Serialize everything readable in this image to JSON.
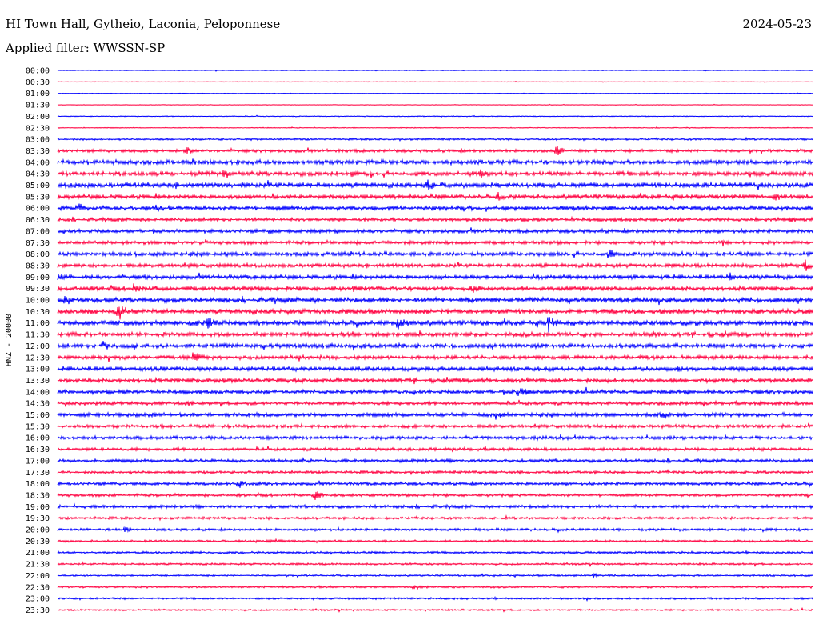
{
  "header": {
    "station": "HI Town Hall, Gytheio, Laconia, Peloponnese",
    "date": "2024-05-23",
    "filter": "Applied filter: WWSSN-SP"
  },
  "chart_data": {
    "type": "helicorder",
    "ylabel": "HNZ - 20000",
    "colors": [
      "#0000ff",
      "#ff0040"
    ],
    "tick_labels": [
      "00:00",
      "00:30",
      "01:00",
      "01:30",
      "02:00",
      "02:30",
      "03:00",
      "03:30",
      "04:00",
      "04:30",
      "05:00",
      "05:30",
      "06:00",
      "06:30",
      "07:00",
      "07:30",
      "08:00",
      "08:30",
      "09:00",
      "09:30",
      "10:00",
      "10:30",
      "11:00",
      "11:30",
      "12:00",
      "12:30",
      "13:00",
      "13:30",
      "14:00",
      "14:30",
      "15:00",
      "15:30",
      "16:00",
      "16:30",
      "17:00",
      "17:30",
      "18:00",
      "18:30",
      "19:00",
      "19:30",
      "20:00",
      "20:30",
      "21:00",
      "21:30",
      "22:00",
      "22:30",
      "23:00",
      "23:30"
    ],
    "noise_level": [
      0.5,
      0.4,
      0.4,
      0.4,
      0.6,
      0.6,
      1.4,
      2.2,
      3.2,
      3.2,
      3.6,
      3.0,
      3.0,
      2.4,
      2.6,
      2.4,
      3.0,
      2.8,
      3.0,
      3.0,
      3.4,
      3.6,
      3.6,
      3.2,
      3.2,
      2.8,
      3.0,
      3.0,
      2.8,
      2.4,
      2.8,
      2.4,
      2.4,
      2.2,
      2.2,
      2.0,
      2.2,
      2.0,
      2.2,
      1.8,
      1.8,
      1.6,
      1.6,
      1.4,
      1.2,
      1.4,
      1.4,
      1.2
    ],
    "events": [
      {
        "trace": "03:30",
        "at": 0.17,
        "amp": 8
      },
      {
        "trace": "03:30",
        "at": 0.66,
        "amp": 9
      },
      {
        "trace": "04:00",
        "at": 0.18,
        "amp": 7
      },
      {
        "trace": "04:00",
        "at": 0.71,
        "amp": 5
      },
      {
        "trace": "04:30",
        "at": 0.22,
        "amp": 9
      },
      {
        "trace": "04:30",
        "at": 0.39,
        "amp": 6
      },
      {
        "trace": "04:30",
        "at": 0.56,
        "amp": 7
      },
      {
        "trace": "05:00",
        "at": 0.49,
        "amp": 11
      },
      {
        "trace": "05:00",
        "at": 0.82,
        "amp": 6
      },
      {
        "trace": "05:30",
        "at": 0.58,
        "amp": 10
      },
      {
        "trace": "05:30",
        "at": 0.95,
        "amp": 7
      },
      {
        "trace": "06:00",
        "at": 0.03,
        "amp": 9
      },
      {
        "trace": "06:00",
        "at": 0.13,
        "amp": 8
      },
      {
        "trace": "06:30",
        "at": 0.97,
        "amp": 6
      },
      {
        "trace": "07:00",
        "at": 0.28,
        "amp": 6
      },
      {
        "trace": "07:30",
        "at": 0.43,
        "amp": 6
      },
      {
        "trace": "07:30",
        "at": 0.88,
        "amp": 7
      },
      {
        "trace": "08:00",
        "at": 0.73,
        "amp": 9
      },
      {
        "trace": "08:30",
        "at": 0.99,
        "amp": 9
      },
      {
        "trace": "09:00",
        "at": 0.0,
        "amp": 10
      },
      {
        "trace": "09:00",
        "at": 0.51,
        "amp": 8
      },
      {
        "trace": "09:00",
        "at": 0.63,
        "amp": 9
      },
      {
        "trace": "09:00",
        "at": 0.89,
        "amp": 7
      },
      {
        "trace": "09:30",
        "at": 0.1,
        "amp": 9
      },
      {
        "trace": "09:30",
        "at": 0.39,
        "amp": 6
      },
      {
        "trace": "09:30",
        "at": 0.55,
        "amp": 9
      },
      {
        "trace": "10:00",
        "at": 0.01,
        "amp": 9
      },
      {
        "trace": "10:00",
        "at": 0.54,
        "amp": 10
      },
      {
        "trace": "10:30",
        "at": 0.08,
        "amp": 16
      },
      {
        "trace": "10:30",
        "at": 0.49,
        "amp": 6
      },
      {
        "trace": "11:00",
        "at": 0.2,
        "amp": 12
      },
      {
        "trace": "11:00",
        "at": 0.45,
        "amp": 12
      },
      {
        "trace": "11:00",
        "at": 0.65,
        "amp": 14
      },
      {
        "trace": "11:30",
        "at": 0.48,
        "amp": 8
      },
      {
        "trace": "11:30",
        "at": 0.79,
        "amp": 7
      },
      {
        "trace": "12:00",
        "at": 0.06,
        "amp": 9
      },
      {
        "trace": "12:30",
        "at": 0.18,
        "amp": 11
      },
      {
        "trace": "12:30",
        "at": 0.32,
        "amp": 7
      },
      {
        "trace": "13:00",
        "at": 0.82,
        "amp": 7
      },
      {
        "trace": "13:30",
        "at": 0.21,
        "amp": 10
      },
      {
        "trace": "14:00",
        "at": 0.61,
        "amp": 11
      },
      {
        "trace": "14:30",
        "at": 0.17,
        "amp": 6
      },
      {
        "trace": "15:00",
        "at": 0.58,
        "amp": 10
      },
      {
        "trace": "15:00",
        "at": 0.8,
        "amp": 10
      },
      {
        "trace": "18:00",
        "at": 0.24,
        "amp": 11
      },
      {
        "trace": "18:30",
        "at": 0.34,
        "amp": 10
      },
      {
        "trace": "20:00",
        "at": 0.09,
        "amp": 5
      },
      {
        "trace": "22:00",
        "at": 0.71,
        "amp": 5
      },
      {
        "trace": "22:30",
        "at": 0.47,
        "amp": 5
      }
    ]
  }
}
